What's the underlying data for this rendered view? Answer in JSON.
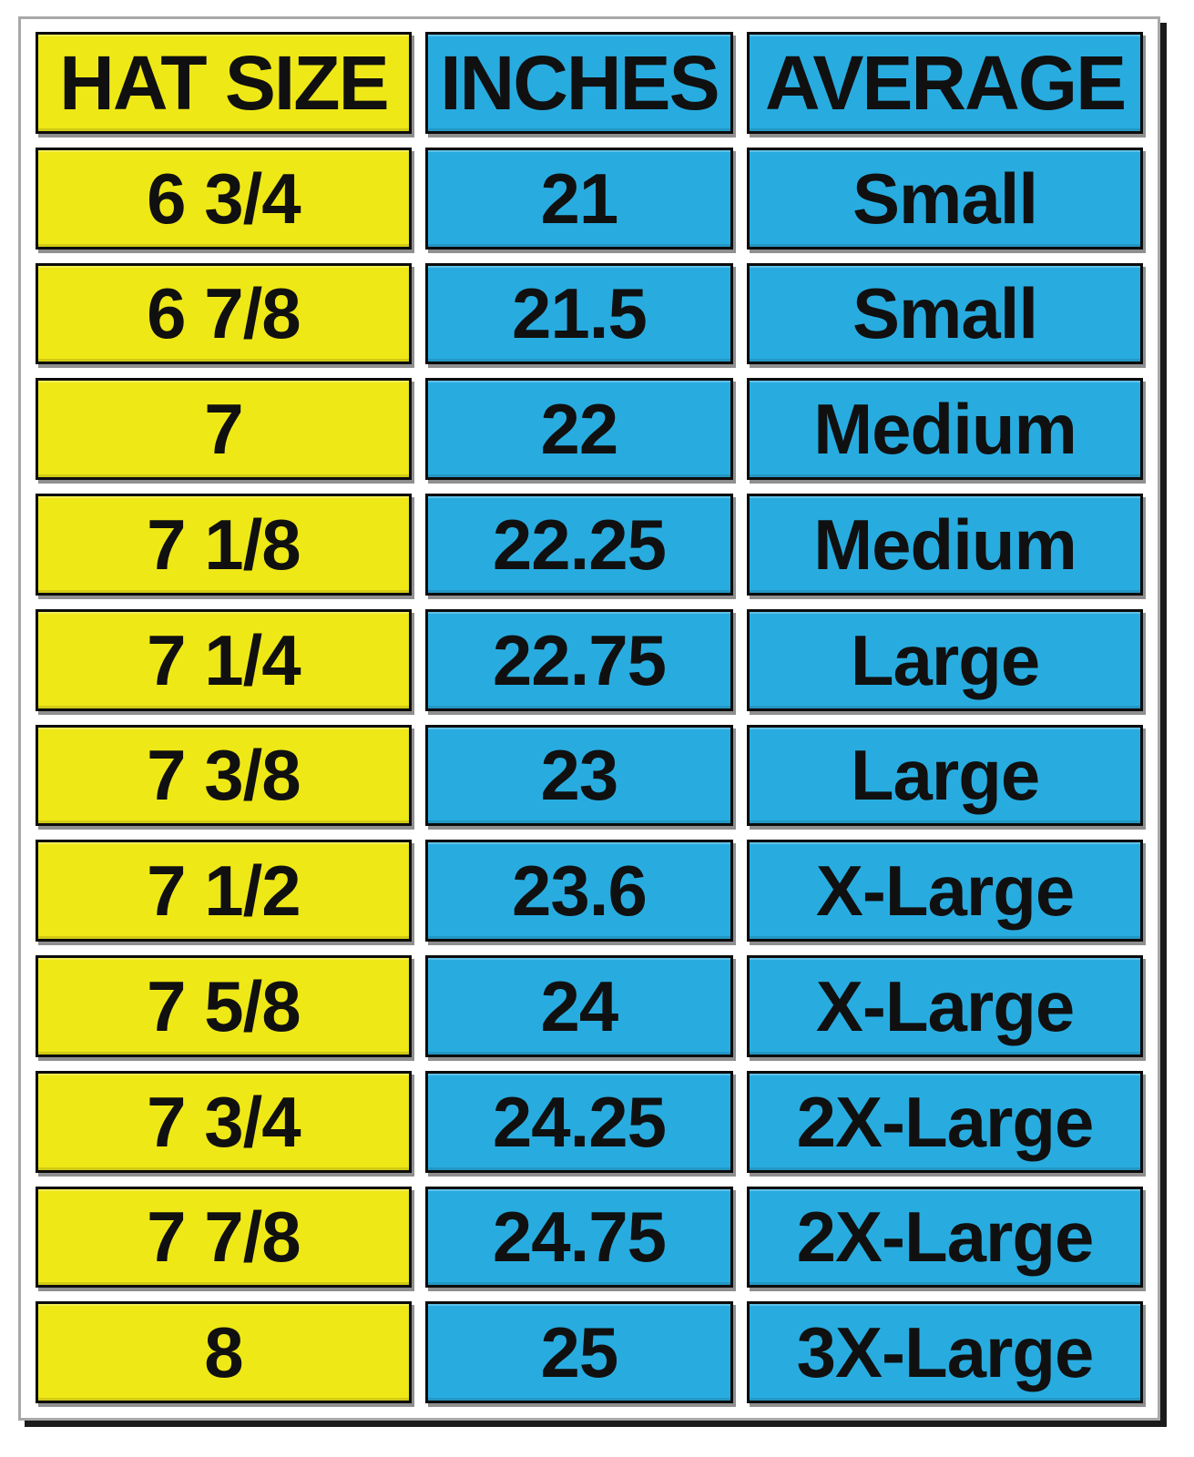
{
  "chart_data": {
    "type": "table",
    "columns": [
      "HAT SIZE",
      "INCHES",
      "AVERAGE"
    ],
    "rows": [
      [
        "6 3/4",
        "21",
        "Small"
      ],
      [
        "6 7/8",
        "21.5",
        "Small"
      ],
      [
        "7",
        "22",
        "Medium"
      ],
      [
        "7 1/8",
        "22.25",
        "Medium"
      ],
      [
        "7 1/4",
        "22.75",
        "Large"
      ],
      [
        "7 3/8",
        "23",
        "Large"
      ],
      [
        "7 1/2",
        "23.6",
        "X-Large"
      ],
      [
        "7 5/8",
        "24",
        "X-Large"
      ],
      [
        "7 3/4",
        "24.25",
        "2X-Large"
      ],
      [
        "7 7/8",
        "24.75",
        "2X-Large"
      ],
      [
        "8",
        "25",
        "3X-Large"
      ]
    ]
  },
  "colors": {
    "hat_size_bg": "#efe817",
    "inches_bg": "#28ace0",
    "average_bg": "#28ace0",
    "cell_border": "#0c0c0c",
    "cell_shadow": "#8f8f8f",
    "frame_border": "#a8a8a8",
    "frame_shadow": "#1b1b1b",
    "text": "#101010",
    "page_bg": "#ffffff"
  }
}
